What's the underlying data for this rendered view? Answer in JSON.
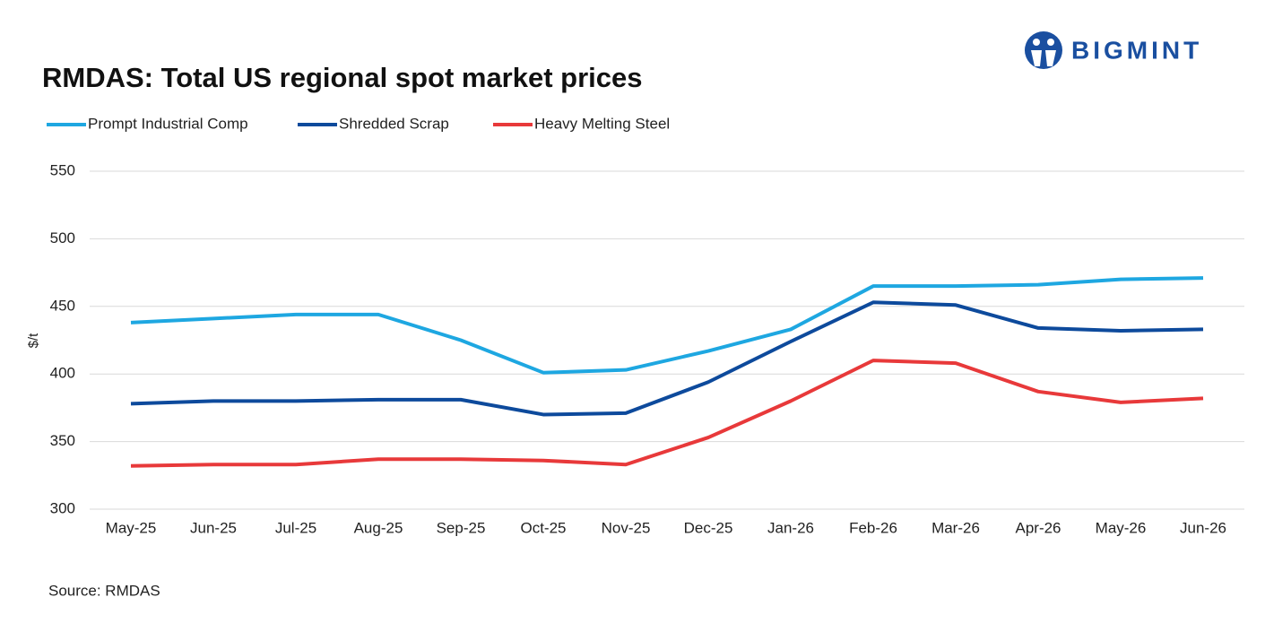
{
  "logo": "BIGMINT",
  "source": "Source: RMDAS",
  "chart_data": {
    "type": "line",
    "title": "RMDAS: Total US regional spot market prices",
    "y_label": "$/t",
    "categories": [
      "May-25",
      "Jun-25",
      "Jul-25",
      "Aug-25",
      "Sep-25",
      "Oct-25",
      "Nov-25",
      "Dec-25",
      "Jan-26",
      "Feb-26",
      "Mar-26",
      "Apr-26",
      "May-26",
      "Jun-26"
    ],
    "series": [
      {
        "name": "Prompt Industrial Comp",
        "color": "#1ea7e1",
        "values": [
          438,
          441,
          444,
          444,
          425,
          401,
          403,
          417,
          433,
          465,
          465,
          466,
          470,
          471
        ]
      },
      {
        "name": "Shredded Scrap",
        "color": "#0d4a9c",
        "values": [
          378,
          380,
          380,
          381,
          381,
          370,
          371,
          394,
          424,
          453,
          451,
          434,
          432,
          433
        ]
      },
      {
        "name": "Heavy Melting Steel",
        "color": "#e8393a",
        "values": [
          332,
          333,
          333,
          337,
          337,
          336,
          333,
          353,
          380,
          410,
          408,
          387,
          379,
          382
        ]
      }
    ],
    "ylim": [
      300,
      550
    ],
    "yticks": [
      300,
      350,
      400,
      450,
      500,
      550
    ],
    "grid": true,
    "legend": "top-left"
  }
}
